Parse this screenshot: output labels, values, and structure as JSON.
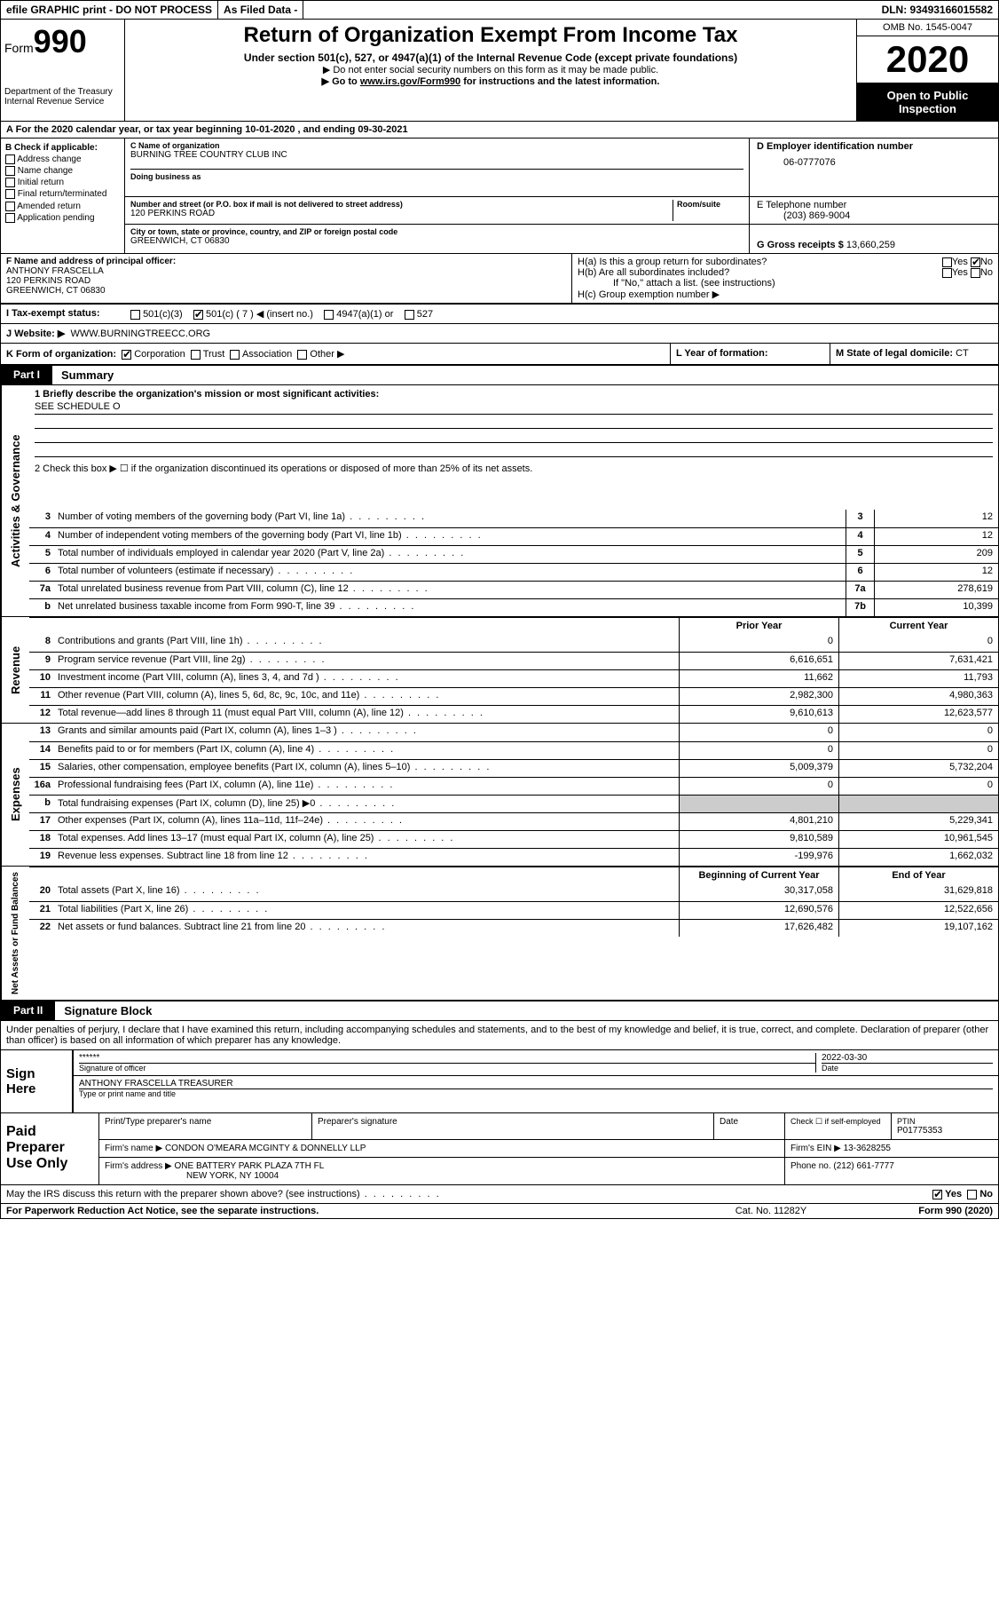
{
  "topbar": {
    "efile": "efile GRAPHIC print - DO NOT PROCESS",
    "asfiled": "As Filed Data -",
    "dln": "DLN: 93493166015582"
  },
  "header": {
    "form_label": "Form",
    "form_num": "990",
    "dept": "Department of the Treasury",
    "irs": "Internal Revenue Service",
    "title": "Return of Organization Exempt From Income Tax",
    "subtitle": "Under section 501(c), 527, or 4947(a)(1) of the Internal Revenue Code (except private foundations)",
    "warn": "▶ Do not enter social security numbers on this form as it may be made public.",
    "goto": "▶ Go to www.irs.gov/Form990 for instructions and the latest information.",
    "omb": "OMB No. 1545-0047",
    "year": "2020",
    "open": "Open to Public Inspection"
  },
  "lineA": "A   For the 2020 calendar year, or tax year beginning 10-01-2020   , and ending 09-30-2021",
  "sectionB": {
    "label": "B Check if applicable:",
    "items": [
      "Address change",
      "Name change",
      "Initial return",
      "Final return/terminated",
      "Amended return",
      "Application pending"
    ]
  },
  "sectionC": {
    "name_label": "C Name of organization",
    "name": "BURNING TREE COUNTRY CLUB INC",
    "dba_label": "Doing business as",
    "addr_label": "Number and street (or P.O. box if mail is not delivered to street address)",
    "room_label": "Room/suite",
    "addr": "120 PERKINS ROAD",
    "city_label": "City or town, state or province, country, and ZIP or foreign postal code",
    "city": "GREENWICH, CT  06830"
  },
  "sectionD": {
    "label": "D Employer identification number",
    "value": "06-0777076"
  },
  "sectionE": {
    "label": "E Telephone number",
    "value": "(203) 869-9004"
  },
  "sectionG": {
    "label": "G Gross receipts $",
    "value": "13,660,259"
  },
  "sectionF": {
    "label": "F  Name and address of principal officer:",
    "name": "ANTHONY FRASCELLA",
    "addr1": "120 PERKINS ROAD",
    "addr2": "GREENWICH, CT  06830"
  },
  "sectionH": {
    "ha": "H(a)  Is this a group return for subordinates?",
    "hb": "H(b)  Are all subordinates included?",
    "hb_note": "If \"No,\" attach a list. (see instructions)",
    "hc": "H(c)  Group exemption number ▶"
  },
  "taxStatus": {
    "label": "I   Tax-exempt status:",
    "opts": [
      "501(c)(3)",
      "501(c) ( 7 ) ◀ (insert no.)",
      "4947(a)(1) or",
      "527"
    ]
  },
  "website": {
    "label": "J   Website: ▶",
    "value": "WWW.BURNINGTREECC.ORG"
  },
  "rowK": {
    "label": "K Form of organization:",
    "opts": [
      "Corporation",
      "Trust",
      "Association",
      "Other ▶"
    ],
    "l_label": "L Year of formation:",
    "m_label": "M State of legal domicile:",
    "m_value": "CT"
  },
  "part1": {
    "label": "Part I",
    "title": "Summary"
  },
  "mission": {
    "q1": "1 Briefly describe the organization's mission or most significant activities:",
    "ans": "SEE SCHEDULE O",
    "q2": "2   Check this box ▶ ☐ if the organization discontinued its operations or disposed of more than 25% of its net assets."
  },
  "govLines": [
    {
      "n": "3",
      "t": "Number of voting members of the governing body (Part VI, line 1a)",
      "b": "3",
      "v": "12"
    },
    {
      "n": "4",
      "t": "Number of independent voting members of the governing body (Part VI, line 1b)",
      "b": "4",
      "v": "12"
    },
    {
      "n": "5",
      "t": "Total number of individuals employed in calendar year 2020 (Part V, line 2a)",
      "b": "5",
      "v": "209"
    },
    {
      "n": "6",
      "t": "Total number of volunteers (estimate if necessary)",
      "b": "6",
      "v": "12"
    },
    {
      "n": "7a",
      "t": "Total unrelated business revenue from Part VIII, column (C), line 12",
      "b": "7a",
      "v": "278,619"
    },
    {
      "n": "b",
      "t": "Net unrelated business taxable income from Form 990-T, line 39",
      "b": "7b",
      "v": "10,399"
    }
  ],
  "colHeaders": {
    "prior": "Prior Year",
    "current": "Current Year"
  },
  "revenue": [
    {
      "n": "8",
      "t": "Contributions and grants (Part VIII, line 1h)",
      "p": "0",
      "c": "0"
    },
    {
      "n": "9",
      "t": "Program service revenue (Part VIII, line 2g)",
      "p": "6,616,651",
      "c": "7,631,421"
    },
    {
      "n": "10",
      "t": "Investment income (Part VIII, column (A), lines 3, 4, and 7d )",
      "p": "11,662",
      "c": "11,793"
    },
    {
      "n": "11",
      "t": "Other revenue (Part VIII, column (A), lines 5, 6d, 8c, 9c, 10c, and 11e)",
      "p": "2,982,300",
      "c": "4,980,363"
    },
    {
      "n": "12",
      "t": "Total revenue—add lines 8 through 11 (must equal Part VIII, column (A), line 12)",
      "p": "9,610,613",
      "c": "12,623,577"
    }
  ],
  "expenses": [
    {
      "n": "13",
      "t": "Grants and similar amounts paid (Part IX, column (A), lines 1–3 )",
      "p": "0",
      "c": "0"
    },
    {
      "n": "14",
      "t": "Benefits paid to or for members (Part IX, column (A), line 4)",
      "p": "0",
      "c": "0"
    },
    {
      "n": "15",
      "t": "Salaries, other compensation, employee benefits (Part IX, column (A), lines 5–10)",
      "p": "5,009,379",
      "c": "5,732,204"
    },
    {
      "n": "16a",
      "t": "Professional fundraising fees (Part IX, column (A), line 11e)",
      "p": "0",
      "c": "0"
    },
    {
      "n": "b",
      "t": "Total fundraising expenses (Part IX, column (D), line 25) ▶0",
      "p": "",
      "c": ""
    },
    {
      "n": "17",
      "t": "Other expenses (Part IX, column (A), lines 11a–11d, 11f–24e)",
      "p": "4,801,210",
      "c": "5,229,341"
    },
    {
      "n": "18",
      "t": "Total expenses. Add lines 13–17 (must equal Part IX, column (A), line 25)",
      "p": "9,810,589",
      "c": "10,961,545"
    },
    {
      "n": "19",
      "t": "Revenue less expenses. Subtract line 18 from line 12",
      "p": "-199,976",
      "c": "1,662,032"
    }
  ],
  "netHeaders": {
    "begin": "Beginning of Current Year",
    "end": "End of Year"
  },
  "netassets": [
    {
      "n": "20",
      "t": "Total assets (Part X, line 16)",
      "p": "30,317,058",
      "c": "31,629,818"
    },
    {
      "n": "21",
      "t": "Total liabilities (Part X, line 26)",
      "p": "12,690,576",
      "c": "12,522,656"
    },
    {
      "n": "22",
      "t": "Net assets or fund balances. Subtract line 21 from line 20",
      "p": "17,626,482",
      "c": "19,107,162"
    }
  ],
  "part2": {
    "label": "Part II",
    "title": "Signature Block"
  },
  "sigtext": "Under penalties of perjury, I declare that I have examined this return, including accompanying schedules and statements, and to the best of my knowledge and belief, it is true, correct, and complete. Declaration of preparer (other than officer) is based on all information of which preparer has any knowledge.",
  "sign": {
    "here": "Sign Here",
    "stars": "******",
    "sig_label": "Signature of officer",
    "date": "2022-03-30",
    "date_label": "Date",
    "name": "ANTHONY FRASCELLA TREASURER",
    "name_label": "Type or print name and title"
  },
  "preparer": {
    "label": "Paid Preparer Use Only",
    "h1": "Print/Type preparer's name",
    "h2": "Preparer's signature",
    "h3": "Date",
    "h4": "Check ☐ if self-employed",
    "h5_label": "PTIN",
    "h5": "P01775353",
    "firm_label": "Firm's name    ▶",
    "firm": "CONDON O'MEARA MCGINTY & DONNELLY LLP",
    "ein_label": "Firm's EIN ▶",
    "ein": "13-3628255",
    "addr_label": "Firm's address ▶",
    "addr1": "ONE BATTERY PARK PLAZA 7TH FL",
    "addr2": "NEW YORK, NY  10004",
    "phone_label": "Phone no.",
    "phone": "(212) 661-7777"
  },
  "footer": {
    "discuss": "May the IRS discuss this return with the preparer shown above? (see instructions)",
    "paperwork": "For Paperwork Reduction Act Notice, see the separate instructions.",
    "cat": "Cat. No. 11282Y",
    "form": "Form 990 (2020)"
  },
  "vert": {
    "gov": "Activities & Governance",
    "rev": "Revenue",
    "exp": "Expenses",
    "net": "Net Assets or Fund Balances"
  }
}
